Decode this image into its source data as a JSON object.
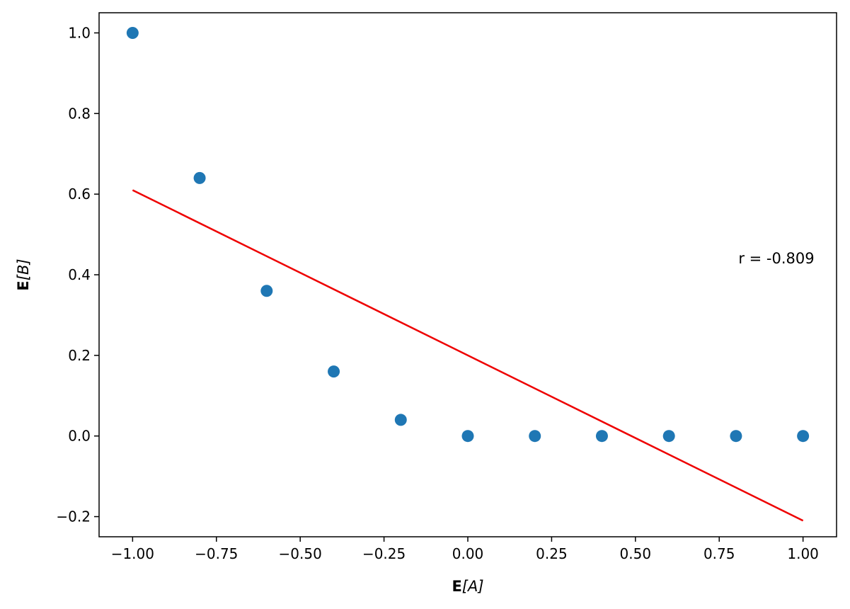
{
  "chart_data": {
    "type": "scatter",
    "xlabel": {
      "bold": "E",
      "rest": "[A]"
    },
    "ylabel": {
      "bold": "E",
      "rest": "[B]"
    },
    "xlim": [
      -1.1,
      1.1
    ],
    "ylim": [
      -0.25,
      1.05
    ],
    "x_ticks": [
      -1.0,
      -0.75,
      -0.5,
      -0.25,
      0.0,
      0.25,
      0.5,
      0.75,
      1.0
    ],
    "x_tick_labels": [
      "−1.00",
      "−0.75",
      "−0.50",
      "−0.25",
      "0.00",
      "0.25",
      "0.50",
      "0.75",
      "1.00"
    ],
    "y_ticks": [
      -0.2,
      0.0,
      0.2,
      0.4,
      0.6,
      0.8,
      1.0
    ],
    "y_tick_labels": [
      "−0.2",
      "0.0",
      "0.2",
      "0.4",
      "0.6",
      "0.8",
      "1.0"
    ],
    "points": {
      "x": [
        -1.0,
        -0.8,
        -0.6,
        -0.4,
        -0.2,
        0.0,
        0.2,
        0.4,
        0.6,
        0.8,
        1.0
      ],
      "y": [
        1.0,
        0.64,
        0.36,
        0.16,
        0.04,
        0.0,
        0.0,
        0.0,
        0.0,
        0.0,
        0.0
      ],
      "color": "#1f77b4"
    },
    "fit_line": {
      "x": [
        -1.0,
        1.0
      ],
      "y": [
        0.61,
        -0.21
      ],
      "color": "#ee0000"
    },
    "annotation": {
      "text": "r = -0.809",
      "x": 1.0,
      "y": 0.44
    },
    "grid": false
  }
}
